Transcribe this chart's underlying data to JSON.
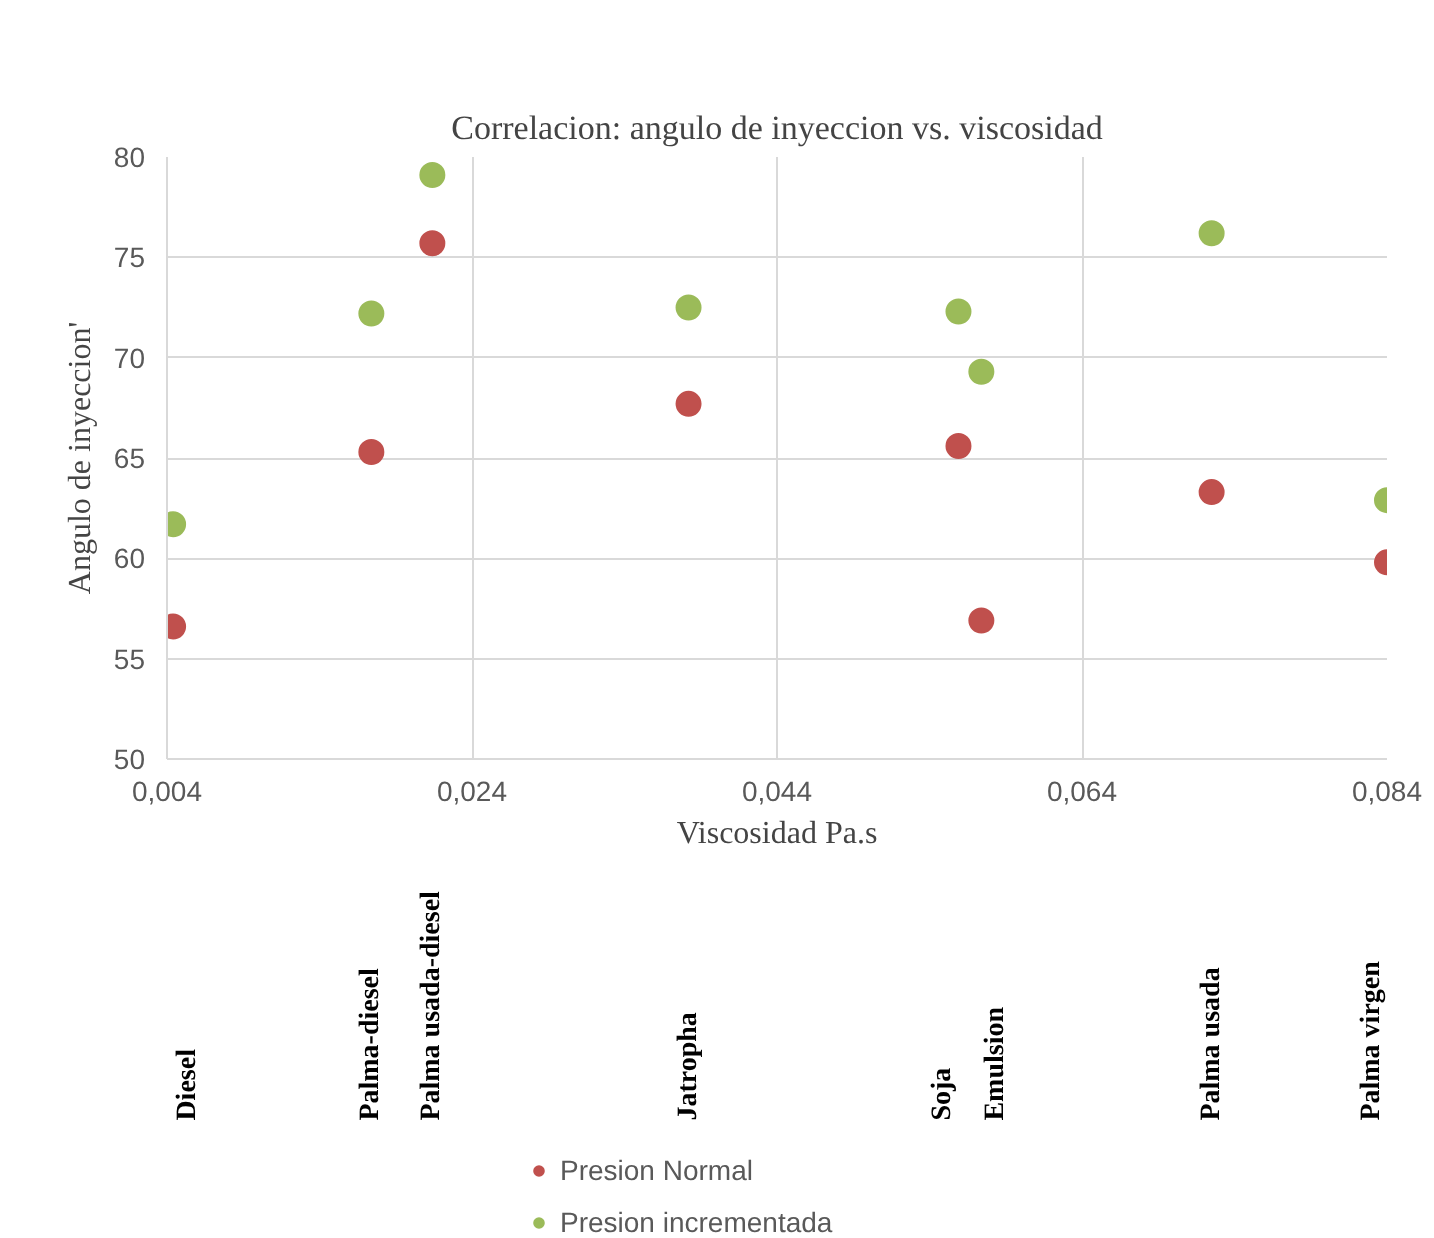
{
  "chart_data": {
    "type": "scatter",
    "title": "Correlacion: angulo de inyeccion vs. viscosidad",
    "xlabel": "Viscosidad Pa.s",
    "ylabel": "Angulo de inyeccion'",
    "x": [
      0.0044,
      0.0174,
      0.0214,
      0.0382,
      0.0559,
      0.0574,
      0.0725,
      0.084
    ],
    "series": [
      {
        "name": "Presion Normal",
        "color": "#c0504d",
        "values": [
          56.6,
          65.3,
          75.7,
          67.7,
          65.6,
          56.9,
          63.3,
          59.8
        ]
      },
      {
        "name": "Presion incrementada",
        "color": "#9bbb59",
        "values": [
          61.7,
          72.2,
          79.1,
          72.5,
          72.3,
          69.3,
          76.2,
          62.9
        ]
      }
    ],
    "annotations": [
      "Diesel",
      "Palma-diesel",
      "Palma usada-diesel",
      "Jatropha",
      "Soja",
      "Emulsion",
      "Palma usada",
      "Palma virgen"
    ],
    "xlim": [
      0.004,
      0.084
    ],
    "xticks": [
      {
        "value": 0.004,
        "label": "0,004"
      },
      {
        "value": 0.024,
        "label": "0,024"
      },
      {
        "value": 0.044,
        "label": "0,044"
      },
      {
        "value": 0.064,
        "label": "0,064"
      },
      {
        "value": 0.084,
        "label": "0,084"
      }
    ],
    "ylim": [
      50,
      80
    ],
    "yticks": [
      50,
      55,
      60,
      65,
      70,
      75,
      80
    ],
    "grid": true,
    "legend": "bottom",
    "marker": "circle"
  }
}
